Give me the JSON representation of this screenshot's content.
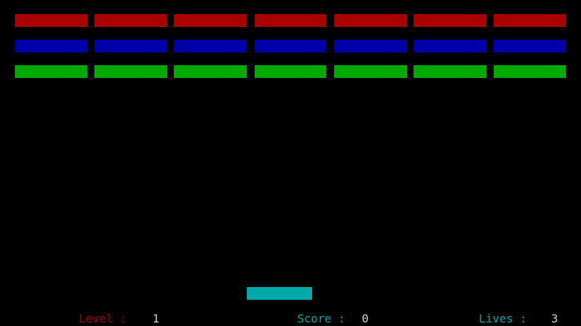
{
  "colors": {
    "background": "#000000",
    "row_red": "#aa0000",
    "row_blue": "#0000aa",
    "row_green": "#00aa00",
    "paddle": "#00aaaa",
    "level_label": "#aa0000",
    "score_label": "#00aaaa",
    "lives_label": "#00aaaa",
    "hud_value": "#d0d0d0"
  },
  "bricks": {
    "rows": [
      {
        "name": "red",
        "color": "#aa0000",
        "count": 7
      },
      {
        "name": "blue",
        "color": "#0000aa",
        "count": 7
      },
      {
        "name": "green",
        "color": "#00aa00",
        "count": 7
      }
    ]
  },
  "hud": {
    "level_label": "Level :",
    "level_value": "1",
    "score_label": "Score :",
    "score_value": "0",
    "lives_label": "Lives :",
    "lives_value": "3"
  }
}
